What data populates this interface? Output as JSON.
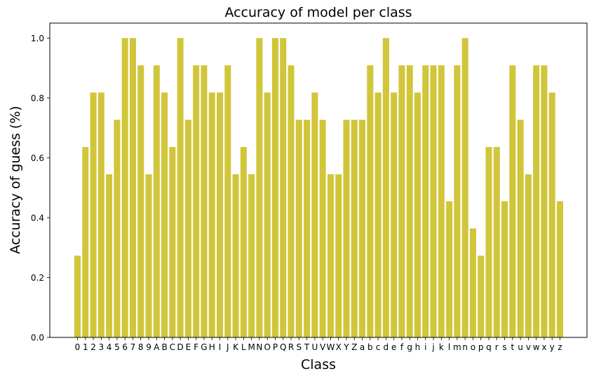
{
  "chart_data": {
    "type": "bar",
    "title": "Accuracy of model per class",
    "xlabel": "Class",
    "ylabel": "Accuracy of guess (%)",
    "ylim": [
      0,
      1.05
    ],
    "yticks": [
      "0.0",
      "0.2",
      "0.4",
      "0.6",
      "0.8",
      "1.0"
    ],
    "grid": false,
    "bar_color": "#d1c53a",
    "categories": [
      "0",
      "1",
      "2",
      "3",
      "4",
      "5",
      "6",
      "7",
      "8",
      "9",
      "A",
      "B",
      "C",
      "D",
      "E",
      "F",
      "G",
      "H",
      "I",
      "J",
      "K",
      "L",
      "M",
      "N",
      "O",
      "P",
      "Q",
      "R",
      "S",
      "T",
      "U",
      "V",
      "W",
      "X",
      "Y",
      "Z",
      "a",
      "b",
      "c",
      "d",
      "e",
      "f",
      "g",
      "h",
      "i",
      "j",
      "k",
      "l",
      "m",
      "n",
      "o",
      "p",
      "q",
      "r",
      "s",
      "t",
      "u",
      "v",
      "w",
      "x",
      "y",
      "z"
    ],
    "values": [
      0.273,
      0.636,
      0.818,
      0.818,
      0.545,
      0.727,
      1.0,
      1.0,
      0.909,
      0.545,
      0.909,
      0.818,
      0.636,
      1.0,
      0.727,
      0.909,
      0.909,
      0.818,
      0.818,
      0.909,
      0.545,
      0.636,
      0.545,
      1.0,
      0.818,
      1.0,
      1.0,
      0.909,
      0.727,
      0.727,
      0.818,
      0.727,
      0.545,
      0.545,
      0.727,
      0.727,
      0.727,
      0.909,
      0.818,
      1.0,
      0.818,
      0.909,
      0.909,
      0.818,
      0.909,
      0.909,
      0.909,
      0.455,
      0.909,
      1.0,
      0.364,
      0.273,
      0.636,
      0.636,
      0.455,
      0.909,
      0.727,
      0.545,
      0.909,
      0.909,
      0.818,
      0.455
    ]
  }
}
